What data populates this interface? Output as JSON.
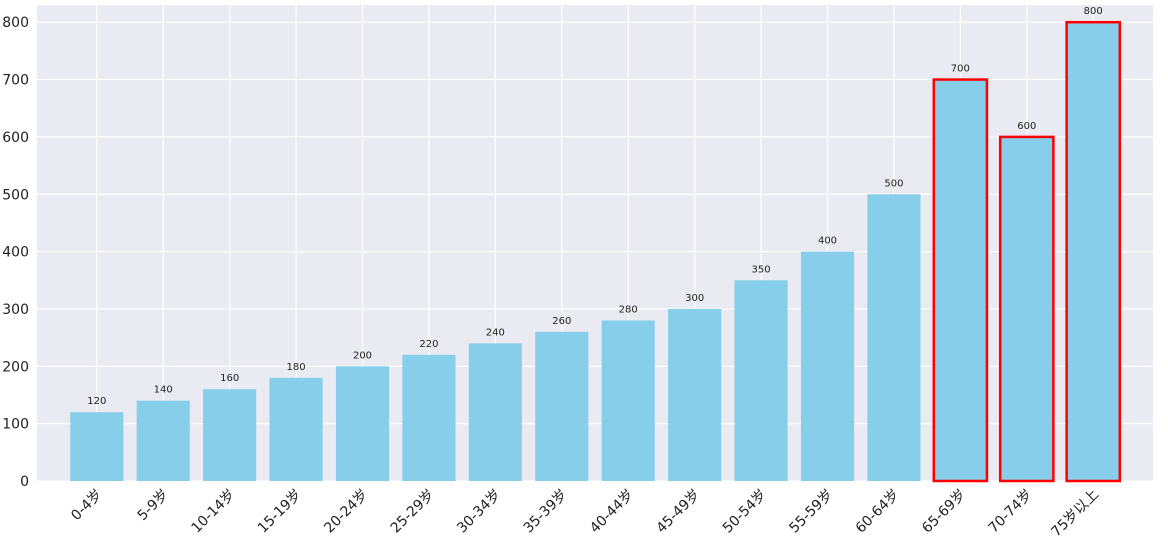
{
  "chart_data": {
    "type": "bar",
    "categories": [
      "0-4岁",
      "5-9岁",
      "10-14岁",
      "15-19岁",
      "20-24岁",
      "25-29岁",
      "30-34岁",
      "35-39岁",
      "40-44岁",
      "45-49岁",
      "50-54岁",
      "55-59岁",
      "60-64岁",
      "65-69岁",
      "70-74岁",
      "75岁以上"
    ],
    "values": [
      120,
      140,
      160,
      180,
      200,
      220,
      240,
      260,
      280,
      300,
      350,
      400,
      500,
      700,
      600,
      800
    ],
    "data_labels": [
      "120",
      "140",
      "160",
      "180",
      "200",
      "220",
      "240",
      "260",
      "280",
      "300",
      "350",
      "400",
      "500",
      "700",
      "600",
      "800"
    ],
    "highlighted": [
      false,
      false,
      false,
      false,
      false,
      false,
      false,
      false,
      false,
      false,
      false,
      false,
      false,
      true,
      true,
      true
    ],
    "title": "",
    "xlabel": "",
    "ylabel": "",
    "ylim": [
      0,
      830
    ],
    "yticks": [
      0,
      100,
      200,
      300,
      400,
      500,
      600,
      700,
      800
    ],
    "ytick_labels": [
      "0",
      "100",
      "200",
      "300",
      "400",
      "500",
      "600",
      "700",
      "800"
    ],
    "grid": true,
    "x_tick_rotation_deg": 45,
    "colors": {
      "bar": "#87CEEB",
      "highlight_edge": "#FF0000",
      "background": "#EAEAF2",
      "grid": "#FFFFFF"
    }
  }
}
